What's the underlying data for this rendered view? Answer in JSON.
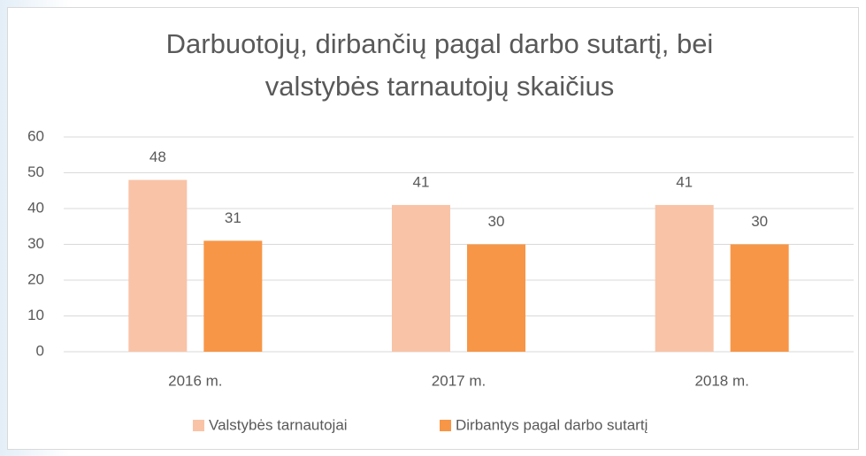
{
  "chart_data": {
    "type": "bar",
    "title": [
      "Darbuotojų, dirbančių pagal darbo sutartį, bei",
      "valstybės tarnautojų skaičius"
    ],
    "categories": [
      "2016 m.",
      "2017 m.",
      "2018 m."
    ],
    "series": [
      {
        "name": "Valstybės tarnautojai",
        "color": "#f9c3a7",
        "values": [
          48,
          41,
          41
        ]
      },
      {
        "name": "Dirbantys pagal darbo sutartį",
        "color": "#f79646",
        "values": [
          31,
          30,
          30
        ]
      }
    ],
    "ylim": [
      0,
      60
    ],
    "yticks": [
      0,
      10,
      20,
      30,
      40,
      50,
      60
    ],
    "grid": true,
    "legend": "bottom"
  }
}
